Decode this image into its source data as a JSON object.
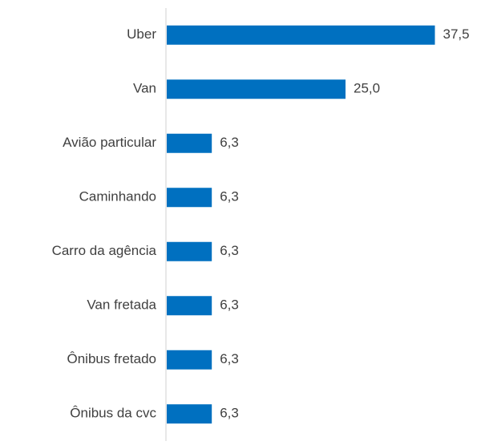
{
  "chart_data": {
    "type": "bar",
    "orientation": "horizontal",
    "categories": [
      "Uber",
      "Van",
      "Avião particular",
      "Caminhando",
      "Carro da agência",
      "Van fretada",
      "Ônibus fretado",
      "Ônibus da cvc"
    ],
    "values": [
      37.5,
      25.0,
      6.3,
      6.3,
      6.3,
      6.3,
      6.3,
      6.3
    ],
    "value_labels": [
      "37,5",
      "25,0",
      "6,3",
      "6,3",
      "6,3",
      "6,3",
      "6,3",
      "6,3"
    ],
    "color": "#0070c0"
  }
}
